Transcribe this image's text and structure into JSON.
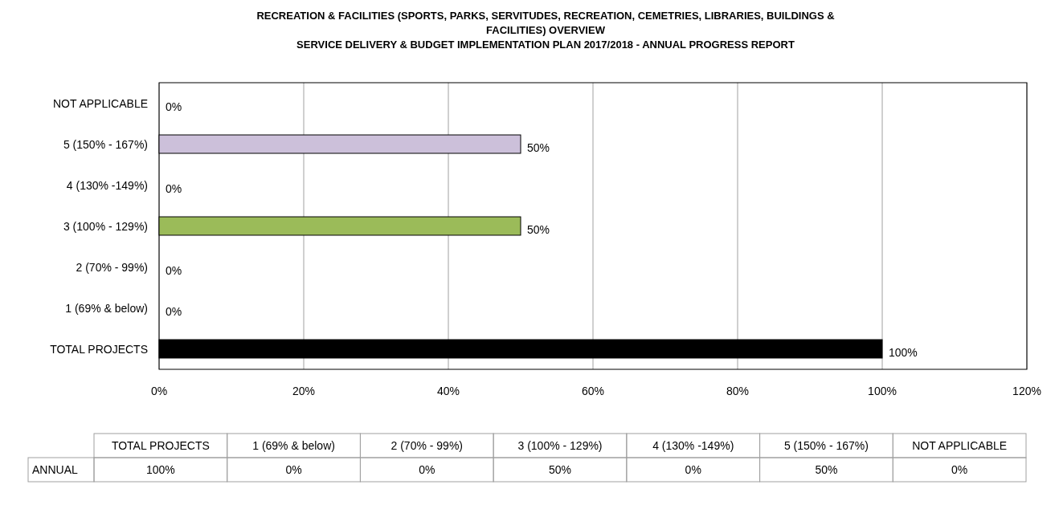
{
  "chart_data": {
    "type": "bar",
    "orientation": "horizontal",
    "title": "RECREATION & FACILITIES (SPORTS, PARKS, SERVITUDES, RECREATION,  CEMETRIES,  LIBRARIES, BUILDINGS & FACILITIES) OVERVIEW",
    "subtitle": "SERVICE DELIVERY & BUDGET IMPLEMENTATION  PLAN 2017/2018 - ANNUAL PROGRESS  REPORT",
    "categories": [
      "NOT APPLICABLE",
      "5 (150% - 167%)",
      "4 (130% -149%)",
      "3 (100% - 129%)",
      "2 (70% - 99%)",
      "1 (69% & below)",
      "TOTAL PROJECTS"
    ],
    "series": [
      {
        "name": "ANNUAL",
        "colors": [
          "#ccc0da",
          "#ccc0da",
          "#ccc0da",
          "#9bbb59",
          "#ccc0da",
          "#ccc0da",
          "#000000"
        ],
        "values": [
          0,
          50,
          0,
          50,
          0,
          0,
          100
        ],
        "value_labels": [
          "0%",
          "50%",
          "0%",
          "50%",
          "0%",
          "0%",
          "100%"
        ]
      }
    ],
    "xlim": [
      0,
      120
    ],
    "xticks": [
      {
        "value": 0,
        "label": "0%"
      },
      {
        "value": 20,
        "label": "20%"
      },
      {
        "value": 40,
        "label": "40%"
      },
      {
        "value": 60,
        "label": "60%"
      },
      {
        "value": 80,
        "label": "80%"
      },
      {
        "value": 100,
        "label": "100%"
      },
      {
        "value": 120,
        "label": "120%"
      }
    ],
    "grid": "x"
  }
}
